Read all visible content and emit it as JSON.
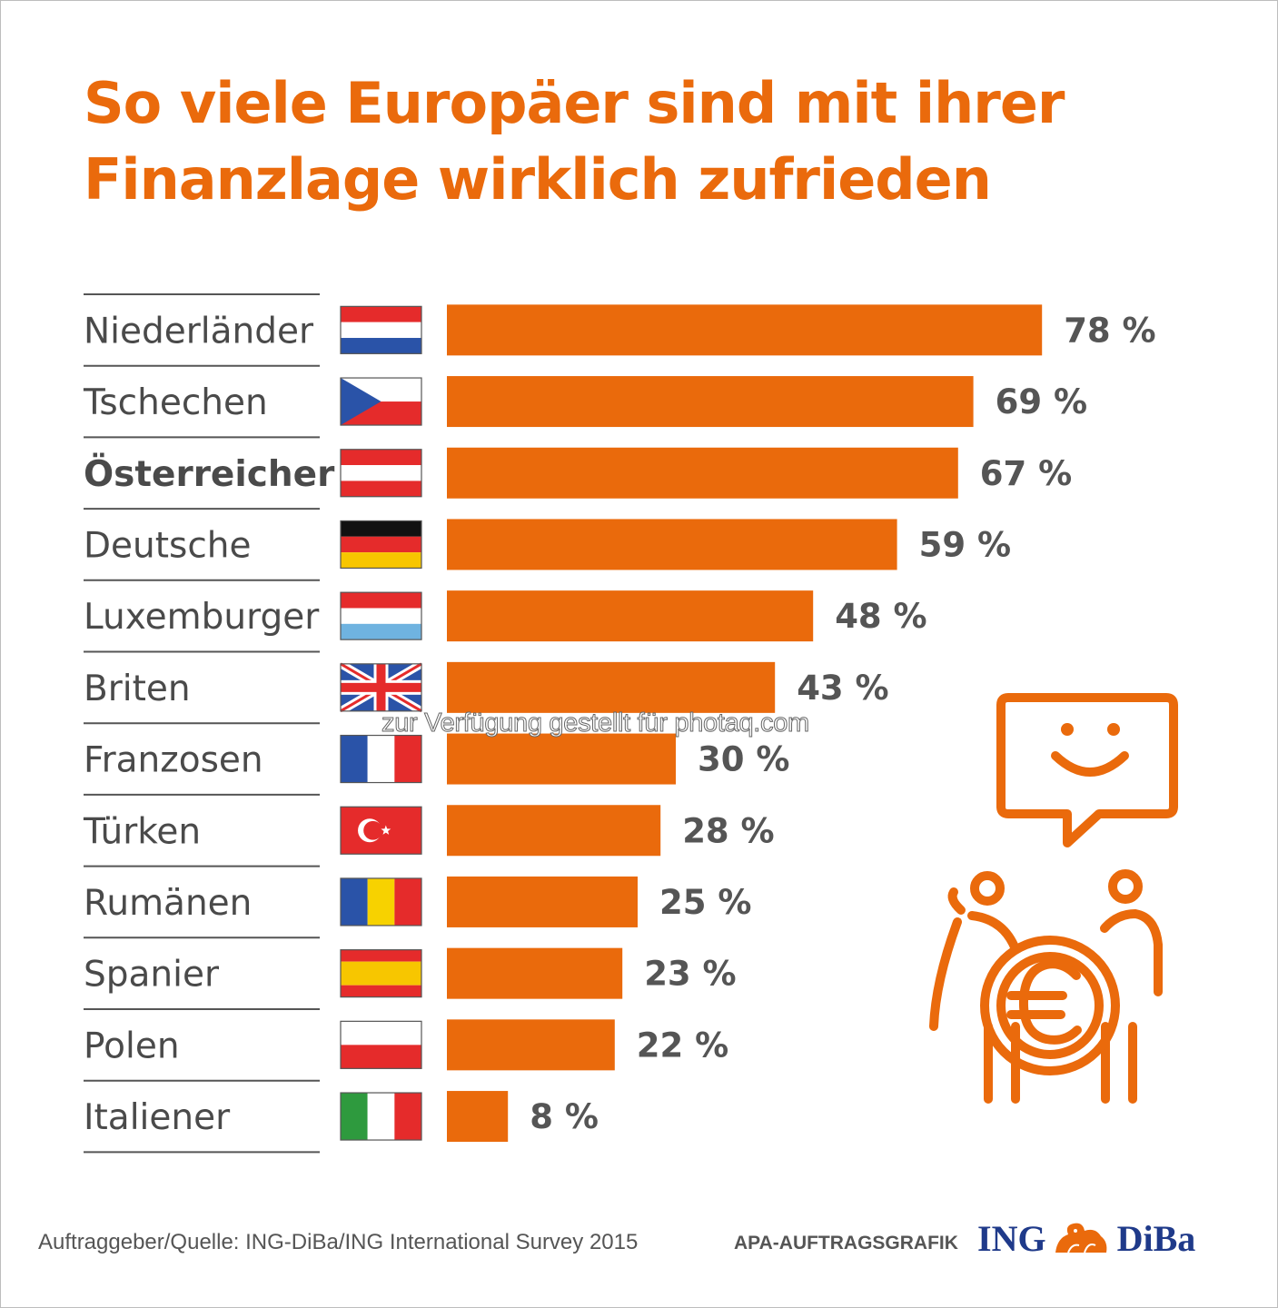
{
  "title_lines": [
    "So viele Europäer sind mit ihrer",
    "Finanzlage wirklich zufrieden"
  ],
  "colors": {
    "accent": "#ea6a0c",
    "text": "#4a4a4a",
    "value": "#555555",
    "brand": "#1f3a8a"
  },
  "chart_data": {
    "type": "bar",
    "orientation": "horizontal",
    "categories": [
      "Niederländer",
      "Tschechen",
      "Österreicher",
      "Deutsche",
      "Luxemburger",
      "Briten",
      "Franzosen",
      "Türken",
      "Rumänen",
      "Spanier",
      "Polen",
      "Italiener"
    ],
    "values": [
      78,
      69,
      67,
      59,
      48,
      43,
      30,
      28,
      25,
      23,
      22,
      8
    ],
    "value_labels": [
      "78 %",
      "69 %",
      "67 %",
      "59 %",
      "48 %",
      "43 %",
      "30 %",
      "28 %",
      "25 %",
      "23 %",
      "22 %",
      "8 %"
    ],
    "highlight": "Österreicher",
    "flags": [
      "nl",
      "cz",
      "at",
      "de",
      "lu",
      "gb",
      "fr",
      "tr",
      "ro",
      "es",
      "pl",
      "it"
    ],
    "unit": "%",
    "xlim": [
      0,
      100
    ],
    "grid": false,
    "legend": "none"
  },
  "footer": {
    "source": "Auftraggeber/Quelle: ING-DiBa/ING International Survey 2015",
    "agency": "APA-AUFTRAGSGRAFIK",
    "logo_left": "ING",
    "logo_right": "DiBa"
  },
  "watermark": "zur Verfügung gestellt für photaq.com",
  "icons": [
    "smiley-speech-bubble-icon",
    "two-people-euro-coin-icon",
    "lion-logo-icon"
  ]
}
